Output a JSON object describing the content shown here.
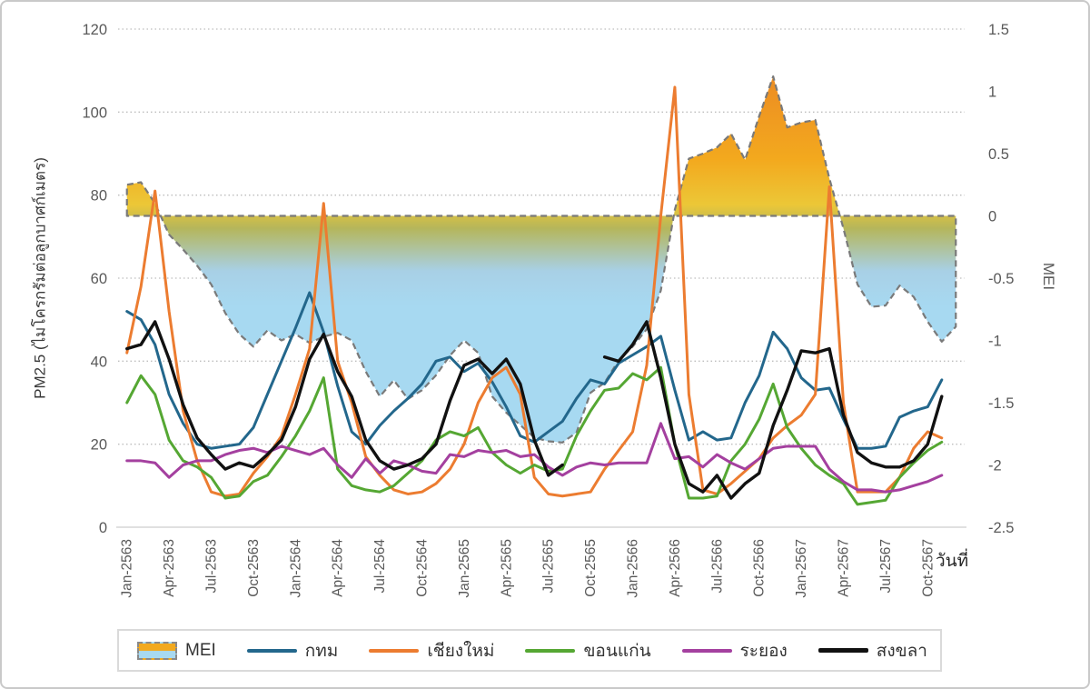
{
  "axes": {
    "left_title": "PM2.5 (ไมโครกรัมต่อลูกบาศก์เมตร)",
    "right_title": "MEI",
    "x_title": "วันที่",
    "left_ticks": [
      0,
      20,
      40,
      60,
      80,
      100,
      120
    ],
    "right_ticks": [
      "1.5",
      "1",
      "0.5",
      "0",
      "-0.5",
      "-1",
      "-1.5",
      "-2",
      "-2.5"
    ],
    "left_range": [
      0,
      120
    ],
    "right_range": [
      -2.5,
      1.5
    ]
  },
  "legend": {
    "items": [
      {
        "id": "mei",
        "label": "MEI",
        "type": "area"
      },
      {
        "id": "bangkok",
        "label": "กทม",
        "type": "line",
        "color": "#23678C"
      },
      {
        "id": "chiangmai",
        "label": "เชียงใหม่",
        "type": "line",
        "color": "#EC7C30"
      },
      {
        "id": "khonkaen",
        "label": "ขอนแก่น",
        "type": "line",
        "color": "#55A733"
      },
      {
        "id": "rayong",
        "label": "ระยอง",
        "type": "line",
        "color": "#A4409F"
      },
      {
        "id": "songkhla",
        "label": "สงขลา",
        "type": "line",
        "color": "#111111"
      }
    ]
  },
  "chart_data": {
    "type": "line",
    "x_tick_interval": 3,
    "grid": "horizontal-dotted",
    "months": [
      "Jan-2563",
      "Feb-2563",
      "Mar-2563",
      "Apr-2563",
      "May-2563",
      "Jun-2563",
      "Jul-2563",
      "Aug-2563",
      "Sep-2563",
      "Oct-2563",
      "Nov-2563",
      "Dec-2563",
      "Jan-2564",
      "Feb-2564",
      "Mar-2564",
      "Apr-2564",
      "May-2564",
      "Jun-2564",
      "Jul-2564",
      "Aug-2564",
      "Sep-2564",
      "Oct-2564",
      "Nov-2564",
      "Dec-2564",
      "Jan-2565",
      "Feb-2565",
      "Mar-2565",
      "Apr-2565",
      "May-2565",
      "Jun-2565",
      "Jul-2565",
      "Aug-2565",
      "Sep-2565",
      "Oct-2565",
      "Nov-2565",
      "Dec-2565",
      "Jan-2566",
      "Feb-2566",
      "Mar-2566",
      "Apr-2566",
      "May-2566",
      "Jun-2566",
      "Jul-2566",
      "Aug-2566",
      "Sep-2566",
      "Oct-2566",
      "Nov-2566",
      "Dec-2566",
      "Jan-2567",
      "Feb-2567",
      "Mar-2567",
      "Apr-2567",
      "May-2567",
      "Jun-2567",
      "Jul-2567",
      "Aug-2567",
      "Sep-2567",
      "Oct-2567",
      "Nov-2567",
      "Dec-2567"
    ],
    "mei": {
      "name": "MEI",
      "axis": "right",
      "outline_color": "#7a7a7a",
      "fill_gradient": {
        "positive_top": "#EC8A23",
        "positive_mid": "#F3A91E",
        "zero_yellow": "#ECC737",
        "olive": "#B5B65B",
        "negative_blue": "#A7D9F1"
      },
      "values": [
        0.25,
        0.27,
        0.1,
        -0.15,
        -0.27,
        -0.4,
        -0.55,
        -0.78,
        -0.95,
        -1.05,
        -0.92,
        -1.0,
        -0.95,
        -1.02,
        -0.97,
        -0.94,
        -1.0,
        -1.25,
        -1.45,
        -1.32,
        -1.47,
        -1.4,
        -1.28,
        -1.12,
        -1.0,
        -1.1,
        -1.45,
        -1.58,
        -1.68,
        -1.78,
        -1.81,
        -1.82,
        -1.74,
        -1.42,
        -1.34,
        -1.16,
        -1.05,
        -0.91,
        -0.6,
        0.05,
        0.46,
        0.5,
        0.55,
        0.66,
        0.45,
        0.8,
        1.12,
        0.71,
        0.75,
        0.77,
        0.3,
        -0.1,
        -0.55,
        -0.73,
        -0.72,
        -0.56,
        -0.65,
        -0.85,
        -1.01,
        -0.89
      ]
    },
    "series": [
      {
        "id": "bangkok",
        "name": "กทม",
        "axis": "left",
        "color": "#23678C",
        "width": 3,
        "values": [
          52,
          50,
          44,
          32,
          25,
          20,
          19,
          19.5,
          20,
          24,
          32,
          40,
          48,
          56.5,
          47,
          34,
          23,
          20,
          24.5,
          28,
          31,
          34.5,
          40,
          41,
          37.5,
          39.5,
          35,
          29,
          22,
          20.5,
          23,
          25.5,
          31,
          35.5,
          34.5,
          39.5,
          41.5,
          43.5,
          46,
          33,
          21,
          23,
          21,
          21.5,
          30,
          36.5,
          47,
          43,
          36,
          33,
          33.5,
          26,
          19,
          19,
          19.5,
          26.5,
          28,
          29,
          35.5,
          null
        ]
      },
      {
        "id": "chiangmai",
        "name": "เชียงใหม่",
        "axis": "left",
        "color": "#EC7C30",
        "width": 3,
        "values": [
          42,
          58,
          81,
          52,
          28,
          16,
          8.5,
          7.5,
          8,
          13,
          17,
          22,
          32,
          43,
          78,
          40,
          30,
          17,
          12.5,
          9,
          8,
          8.5,
          10.5,
          14,
          20,
          30,
          36,
          38.5,
          32,
          12,
          8,
          7.5,
          8,
          8.5,
          14,
          18.5,
          23,
          39,
          75,
          106,
          32,
          9,
          8,
          10.5,
          13.5,
          16.5,
          21.5,
          24.5,
          27,
          32,
          82,
          30,
          8.5,
          8.5,
          8.5,
          12,
          19,
          23,
          21.5,
          null
        ]
      },
      {
        "id": "khonkaen",
        "name": "ขอนแก่น",
        "axis": "left",
        "color": "#55A733",
        "width": 3,
        "values": [
          30,
          36.5,
          32,
          21,
          16,
          14.5,
          12,
          7,
          7.5,
          11,
          12.5,
          17,
          22,
          28,
          36,
          14,
          10,
          9,
          8.5,
          10,
          13,
          16,
          21,
          23,
          22,
          24,
          18,
          15,
          13,
          15,
          13.5,
          14,
          22,
          28,
          33,
          33.5,
          37,
          35.5,
          38.5,
          20,
          7,
          7,
          7.5,
          16,
          20,
          26,
          34.5,
          24,
          19,
          15,
          12.5,
          10.5,
          5.5,
          6,
          6.5,
          12,
          15.5,
          18.5,
          20.5,
          null
        ]
      },
      {
        "id": "rayong",
        "name": "ระยอง",
        "axis": "left",
        "color": "#A4409F",
        "width": 3,
        "values": [
          16,
          16,
          15.5,
          12,
          15,
          16,
          16,
          17.5,
          18.5,
          19,
          18,
          19.5,
          18.5,
          17.5,
          19,
          15,
          12,
          16.5,
          13,
          16,
          15,
          13.5,
          13,
          17.5,
          17,
          18.5,
          18,
          18.5,
          17,
          17.5,
          14.5,
          12.5,
          14.5,
          15.5,
          15,
          15.5,
          15.5,
          15.5,
          25,
          16.5,
          17,
          14.5,
          17.5,
          15.5,
          14,
          16.5,
          19,
          19.5,
          19.5,
          19.5,
          14,
          11,
          9,
          9,
          8.5,
          9,
          10,
          11,
          12.5,
          null
        ]
      },
      {
        "id": "songkhla",
        "name": "สงขลา",
        "axis": "left",
        "color": "#111111",
        "width": 3.4,
        "values": [
          43,
          44,
          49.5,
          40.5,
          29.5,
          21.5,
          17.5,
          14,
          15.5,
          14.5,
          17.5,
          21,
          29,
          40.5,
          46.5,
          37.5,
          31.5,
          21,
          16,
          14,
          15,
          16.5,
          20,
          30.5,
          39,
          40.5,
          37,
          40.5,
          34.5,
          21,
          12.5,
          15,
          null,
          null,
          41,
          40,
          44,
          49.5,
          36,
          20,
          10.5,
          8.5,
          12.5,
          7,
          10.5,
          13,
          24.5,
          33,
          42.5,
          42,
          43,
          27,
          18,
          15.5,
          14.5,
          14.5,
          16,
          20,
          31.5,
          null
        ]
      }
    ]
  }
}
